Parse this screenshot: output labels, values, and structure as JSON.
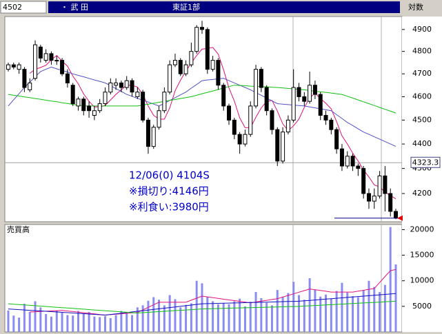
{
  "header": {
    "code": "4502",
    "name": "・ 武 田",
    "market": "東証1部",
    "scale": "対数"
  },
  "chart_data": [
    {
      "type": "candlestick",
      "log": true,
      "ylim": [
        4090,
        4960
      ],
      "yticks": [
        4200,
        4300,
        4400,
        4500,
        4600,
        4700,
        4800,
        4900
      ],
      "annotations": [
        "12/06(0) 4104S",
        "※損切り:4146円",
        "※利食い:3980円"
      ],
      "cursor": 4323.3,
      "reference_line": 4104,
      "open": [
        4720,
        4740,
        4720,
        4720,
        4630,
        4680,
        4820,
        4760,
        4790,
        4760,
        4760,
        4700,
        4650,
        4560,
        4590,
        4560,
        4520,
        4540,
        4570,
        4620,
        4650,
        4660,
        4640,
        4670,
        4600,
        4620,
        4500,
        4390,
        4470,
        4540,
        4620,
        4740,
        4760,
        4700,
        4740,
        4800,
        4910,
        4900,
        4720,
        4760,
        4650,
        4560,
        4500,
        4440,
        4400,
        4440,
        4560,
        4720,
        4640,
        4540,
        4460,
        4330,
        4450,
        4500,
        4640,
        4600,
        4580,
        4650,
        4610,
        4520,
        4500,
        4460,
        4380,
        4310,
        4350,
        4310,
        4300,
        4200,
        4170,
        4190,
        4270,
        4200,
        4130
      ],
      "high": [
        4750,
        4750,
        4750,
        4730,
        4680,
        4850,
        4830,
        4810,
        4800,
        4780,
        4770,
        4720,
        4660,
        4600,
        4600,
        4580,
        4560,
        4590,
        4640,
        4680,
        4680,
        4670,
        4690,
        4680,
        4640,
        4630,
        4510,
        4480,
        4560,
        4640,
        4760,
        4790,
        4770,
        4760,
        4840,
        4920,
        4940,
        4910,
        4780,
        4770,
        4660,
        4570,
        4510,
        4450,
        4460,
        4580,
        4740,
        4730,
        4650,
        4550,
        4470,
        4470,
        4520,
        4720,
        4660,
        4620,
        4710,
        4670,
        4620,
        4540,
        4510,
        4470,
        4400,
        4370,
        4360,
        4320,
        4310,
        4220,
        4220,
        4290,
        4310,
        4220,
        4140
      ],
      "low": [
        4710,
        4720,
        4700,
        4620,
        4620,
        4670,
        4750,
        4750,
        4740,
        4740,
        4690,
        4640,
        4560,
        4540,
        4520,
        4510,
        4500,
        4530,
        4560,
        4610,
        4630,
        4620,
        4630,
        4600,
        4590,
        4490,
        4360,
        4380,
        4460,
        4530,
        4610,
        4730,
        4690,
        4690,
        4730,
        4790,
        4880,
        4700,
        4710,
        4630,
        4540,
        4480,
        4420,
        4360,
        4390,
        4430,
        4550,
        4620,
        4520,
        4440,
        4310,
        4320,
        4440,
        4490,
        4580,
        4560,
        4570,
        4590,
        4500,
        4480,
        4440,
        4360,
        4290,
        4300,
        4290,
        4270,
        4180,
        4140,
        4140,
        4180,
        4130,
        4110,
        4100
      ],
      "close": [
        4740,
        4730,
        4740,
        4640,
        4660,
        4830,
        4770,
        4790,
        4760,
        4760,
        4700,
        4660,
        4570,
        4590,
        4540,
        4540,
        4540,
        4570,
        4620,
        4660,
        4660,
        4640,
        4670,
        4620,
        4620,
        4500,
        4390,
        4470,
        4540,
        4620,
        4740,
        4760,
        4700,
        4740,
        4800,
        4910,
        4900,
        4720,
        4760,
        4650,
        4560,
        4500,
        4440,
        4400,
        4440,
        4560,
        4720,
        4640,
        4540,
        4460,
        4330,
        4450,
        4500,
        4640,
        4600,
        4580,
        4650,
        4610,
        4520,
        4500,
        4460,
        4380,
        4310,
        4350,
        4310,
        4300,
        4200,
        4170,
        4190,
        4270,
        4200,
        4130,
        4104
      ],
      "series": [
        {
          "color": "#e0107a",
          "values": [
            null,
            null,
            null,
            null,
            4702,
            4720,
            4728,
            4738,
            4762,
            4782,
            4756,
            4734,
            4690,
            4656,
            4612,
            4580,
            4556,
            4556,
            4562,
            4586,
            4610,
            4630,
            4650,
            4650,
            4642,
            4610,
            4560,
            4520,
            4504,
            4504,
            4552,
            4626,
            4672,
            4712,
            4748,
            4782,
            4810,
            4814,
            4818,
            4788,
            4718,
            4638,
            4582,
            4510,
            4468,
            4468,
            4512,
            4552,
            4580,
            4584,
            4538,
            4484,
            4456,
            4476,
            4504,
            4554,
            4594,
            4616,
            4592,
            4572,
            4548,
            4494,
            4434,
            4400,
            4362,
            4330,
            4294,
            4266,
            4234,
            4226,
            4206,
            4192,
            4179
          ]
        },
        {
          "color": "#5050c8",
          "values": [
            4560,
            4587,
            4613,
            4640,
            4663,
            4687,
            4710,
            4720,
            4730,
            4722,
            4715,
            4708,
            4700,
            4693,
            4687,
            4680,
            4673,
            4667,
            4660,
            4648,
            4635,
            4623,
            4610,
            4602,
            4593,
            4585,
            4577,
            4568,
            4560,
            4572,
            4584,
            4596,
            4608,
            4620,
            4637,
            4653,
            4670,
            4673,
            4675,
            4678,
            4680,
            4670,
            4660,
            4650,
            4640,
            4630,
            4618,
            4606,
            4594,
            4582,
            4570,
            4568,
            4566,
            4564,
            4562,
            4560,
            4556,
            4552,
            4548,
            4544,
            4540,
            4523,
            4507,
            4490,
            4477,
            4463,
            4450,
            4440,
            4430,
            4420,
            4410,
            4400,
            4390
          ]
        },
        {
          "color": "#10c010",
          "values": [
            4610,
            4606,
            4603,
            4599,
            4596,
            4592,
            4589,
            4585,
            4581,
            4578,
            4574,
            4571,
            4567,
            4564,
            4560,
            4560,
            4560,
            4560,
            4560,
            4560,
            4560,
            4560,
            4560,
            4560,
            4560,
            4564,
            4568,
            4572,
            4576,
            4580,
            4584,
            4588,
            4592,
            4596,
            4600,
            4606,
            4613,
            4619,
            4625,
            4631,
            4638,
            4644,
            4650,
            4649,
            4648,
            4646,
            4645,
            4644,
            4643,
            4641,
            4640,
            4638,
            4636,
            4634,
            4632,
            4630,
            4627,
            4624,
            4621,
            4619,
            4616,
            4613,
            4610,
            4602,
            4594,
            4586,
            4578,
            4570,
            4562,
            4554,
            4546,
            4538,
            4530
          ]
        }
      ]
    },
    {
      "type": "bar",
      "title": "売買高",
      "color": "#8a8cf0",
      "ylim": [
        0,
        21000
      ],
      "yticks": [
        5000,
        10000,
        15000,
        20000
      ],
      "values": [
        4200,
        3200,
        2800,
        5500,
        3900,
        6000,
        4800,
        3500,
        3000,
        4200,
        3800,
        3300,
        3200,
        4100,
        3600,
        3900,
        3000,
        2900,
        3100,
        2700,
        3300,
        4100,
        3600,
        3300,
        4800,
        5200,
        6100,
        6800,
        6300,
        5200,
        7200,
        6400,
        4800,
        5300,
        5600,
        10000,
        9500,
        6800,
        6000,
        5400,
        5600,
        5400,
        6000,
        6500,
        5000,
        5900,
        7800,
        6600,
        5700,
        5200,
        8200,
        6900,
        7600,
        9800,
        7200,
        6300,
        10500,
        8300,
        6900,
        7300,
        6500,
        8000,
        9600,
        7700,
        7000,
        6800,
        8200,
        10000,
        8800,
        7800,
        9200,
        20500,
        13200
      ],
      "series": [
        {
          "color": "#e0107a",
          "values": [
            null,
            null,
            null,
            null,
            3900,
            3950,
            4000,
            4050,
            4100,
            4150,
            4200,
            4090,
            3980,
            3860,
            3750,
            3640,
            3530,
            3410,
            3300,
            3380,
            3470,
            3550,
            3630,
            3720,
            3800,
            4300,
            4800,
            5300,
            5800,
            5800,
            5800,
            5800,
            5800,
            5800,
            6200,
            6600,
            7000,
            6850,
            6700,
            6550,
            6400,
            6260,
            6120,
            5980,
            5840,
            5700,
            5860,
            6020,
            6180,
            6340,
            6500,
            6820,
            7130,
            7450,
            7770,
            8080,
            8400,
            8250,
            8100,
            7950,
            7800,
            7800,
            7800,
            7800,
            7800,
            7980,
            8150,
            8330,
            8500,
            9670,
            10830,
            12000,
            12200
          ]
        },
        {
          "color": "#1010c0",
          "values": [
            4500,
            4433,
            4367,
            4300,
            4233,
            4167,
            4100,
            4033,
            3967,
            3900,
            3833,
            3767,
            3700,
            3633,
            3567,
            3500,
            3433,
            3367,
            3300,
            3422,
            3544,
            3667,
            3789,
            3911,
            4033,
            4156,
            4278,
            4400,
            4522,
            4644,
            4767,
            4889,
            5011,
            5133,
            5256,
            5378,
            5500,
            5528,
            5556,
            5583,
            5611,
            5639,
            5667,
            5694,
            5722,
            5750,
            5778,
            5806,
            5833,
            5861,
            5889,
            5917,
            5944,
            5972,
            6000,
            6083,
            6167,
            6250,
            6333,
            6417,
            6500,
            6583,
            6667,
            6750,
            6833,
            6917,
            7000,
            7083,
            7167,
            7250,
            7333,
            7417,
            7500
          ]
        },
        {
          "color": "#10c010",
          "values": [
            5500,
            5425,
            5350,
            5275,
            5200,
            5125,
            5050,
            4975,
            4900,
            4825,
            4750,
            4675,
            4600,
            4525,
            4450,
            4375,
            4300,
            4225,
            4150,
            4075,
            4000,
            3925,
            3850,
            3775,
            3700,
            3767,
            3833,
            3900,
            3967,
            4033,
            4100,
            4167,
            4233,
            4300,
            4367,
            4433,
            4500,
            4528,
            4556,
            4583,
            4611,
            4639,
            4667,
            4694,
            4722,
            4750,
            4778,
            4806,
            4833,
            4861,
            4889,
            4917,
            4944,
            4972,
            5000,
            5056,
            5111,
            5167,
            5222,
            5278,
            5333,
            5389,
            5444,
            5500,
            5556,
            5611,
            5667,
            5722,
            5778,
            5833,
            5889,
            5944,
            6000
          ]
        }
      ]
    }
  ]
}
